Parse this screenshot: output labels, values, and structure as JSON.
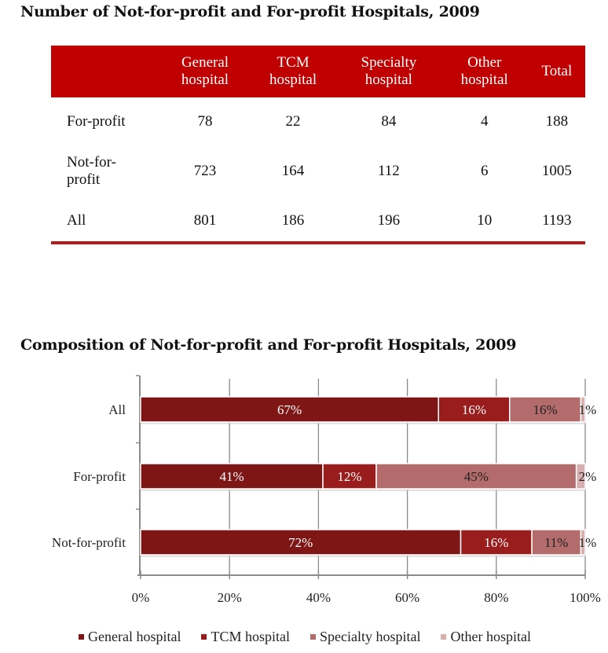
{
  "table_title": "Number of Not-for-profit and For-profit Hospitals, 2009",
  "table": {
    "columns": [
      "General hospital",
      "TCM hospital",
      "Specialty hospital",
      "Other hospital",
      "Total"
    ],
    "column_lines": [
      [
        "General",
        "hospital"
      ],
      [
        "TCM",
        "hospital"
      ],
      [
        "Specialty",
        "hospital"
      ],
      [
        "Other",
        "hospital"
      ],
      [
        "Total"
      ]
    ],
    "rows": [
      {
        "label": "For-profit",
        "label_lines": [
          "For-profit"
        ],
        "values": [
          "78",
          "22",
          "84",
          "4",
          "188"
        ]
      },
      {
        "label": "Not-for-profit",
        "label_lines": [
          "Not-for-",
          "profit"
        ],
        "values": [
          "723",
          "164",
          "112",
          "6",
          "1005"
        ]
      },
      {
        "label": "All",
        "label_lines": [
          "All"
        ],
        "values": [
          "801",
          "186",
          "196",
          "10",
          "1193"
        ]
      }
    ],
    "header_color": "#c00000"
  },
  "chart_title": "Composition of Not-for-profit and For-profit Hospitals, 2009",
  "chart_data": {
    "type": "bar",
    "orientation": "horizontal",
    "stacked": true,
    "title": "Composition of Not-for-profit and For-profit Hospitals, 2009",
    "categories": [
      "All",
      "For-profit",
      "Not-for-profit"
    ],
    "series": [
      {
        "name": "General hospital",
        "color": "#7f1616",
        "values": [
          67,
          41,
          72
        ],
        "labels": [
          "67%",
          "41%",
          "72%"
        ],
        "label_color": "#ffffff"
      },
      {
        "name": "TCM hospital",
        "color": "#9a1d1d",
        "values": [
          16,
          12,
          16
        ],
        "labels": [
          "16%",
          "12%",
          "16%"
        ],
        "label_color": "#ffffff"
      },
      {
        "name": "Specialty hospital",
        "color": "#b36b6b",
        "values": [
          16,
          45,
          11
        ],
        "labels": [
          "16%",
          "45%",
          "11%"
        ],
        "label_color": "#222222"
      },
      {
        "name": "Other hospital",
        "color": "#d9b0b0",
        "values": [
          1,
          2,
          1
        ],
        "labels": [
          "1%",
          "2%",
          "1%"
        ],
        "label_color": "#222222"
      }
    ],
    "xlim": [
      0,
      100
    ],
    "xticks": [
      0,
      20,
      40,
      60,
      80,
      100
    ],
    "xtick_labels": [
      "0%",
      "20%",
      "40%",
      "60%",
      "80%",
      "100%"
    ],
    "xlabel": "",
    "ylabel": "",
    "grid": true,
    "legend_position": "bottom"
  }
}
